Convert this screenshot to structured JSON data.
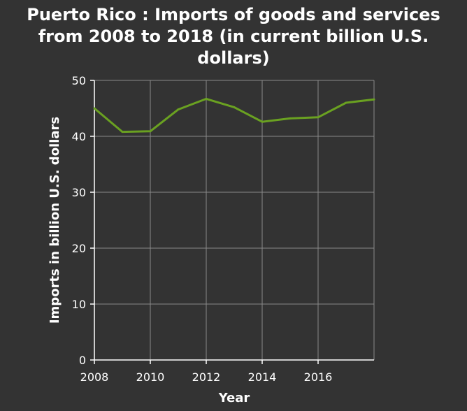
{
  "chart_data": {
    "type": "line",
    "title": "Puerto Rico : Imports of goods and services\nfrom 2008 to 2018 (in current billion U.S.\ndollars)",
    "xlabel": "Year",
    "ylabel": "Imports in billion U.S. dollars",
    "xlim": [
      2008,
      2018
    ],
    "ylim": [
      0,
      50
    ],
    "x_ticks": [
      2008,
      2010,
      2012,
      2014,
      2016
    ],
    "y_ticks": [
      0,
      10,
      20,
      30,
      40,
      50
    ],
    "grid": true,
    "series": [
      {
        "color": "#6aa121",
        "x": [
          2008,
          2009,
          2010,
          2011,
          2012,
          2013,
          2014,
          2015,
          2016,
          2017,
          2018
        ],
        "values": [
          45.0,
          40.8,
          40.9,
          44.8,
          46.7,
          45.2,
          42.6,
          43.2,
          43.4,
          46.0,
          46.6
        ]
      }
    ]
  }
}
